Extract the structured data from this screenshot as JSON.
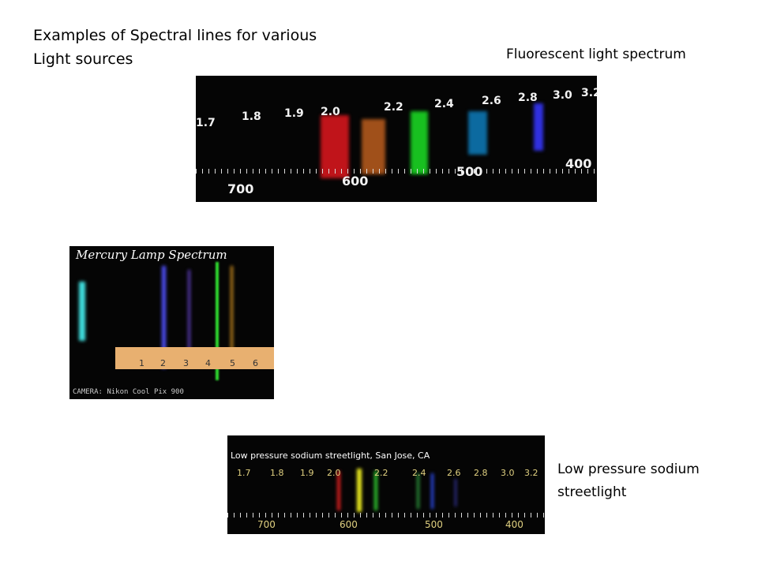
{
  "title": {
    "lines": [
      "Examples of Spectral lines for various",
      "Light sources"
    ]
  },
  "captions": [
    {
      "text": "Fluorescent light spectrum"
    },
    {
      "lines": [
        "Low pressure sodium",
        "streetlight"
      ]
    }
  ],
  "photos": [
    {
      "top_scale": [
        "1.7",
        "1.8",
        "1.9",
        "2.0",
        "2.2",
        "2.4",
        "2.6",
        "2.8",
        "3.0",
        "3.2"
      ],
      "bottom_scale": [
        "700",
        "600",
        "500",
        "400"
      ]
    },
    {
      "caption": "Mercury Lamp Spectrum",
      "credit": "CAMERA: Nikon Cool Pix 900",
      "scale": [
        "1",
        "2",
        "3",
        "4",
        "5",
        "6"
      ]
    },
    {
      "caption": "Low pressure sodium streetlight, San Jose, CA",
      "top_scale": [
        "1.7",
        "1.8",
        "1.9",
        "2.0",
        "2.2",
        "2.4",
        "2.6",
        "2.8",
        "3.0",
        "3.2"
      ],
      "bottom_scale": [
        "700",
        "600",
        "500",
        "400"
      ]
    }
  ]
}
